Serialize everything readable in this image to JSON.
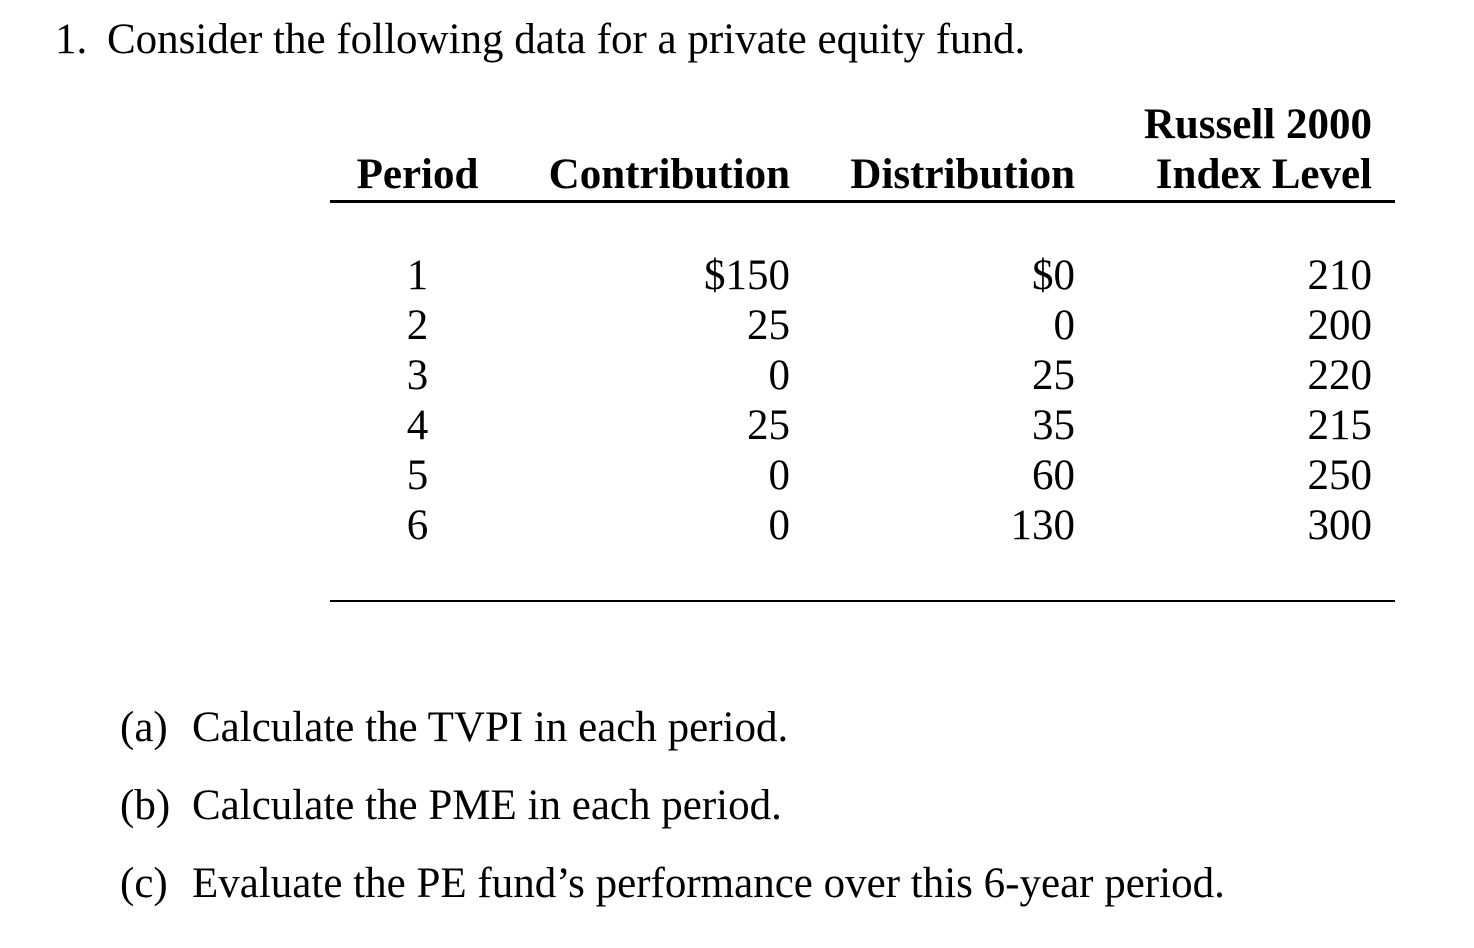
{
  "page": {
    "background_color": "#ffffff",
    "text_color": "#000000"
  },
  "problem": {
    "number": "1.",
    "statement": "Consider the following data for a private equity fund."
  },
  "table": {
    "header_top_col4": "Russell 2000",
    "headers": {
      "period": "Period",
      "contribution": "Contribution",
      "distribution": "Distribution",
      "index_level": "Index Level"
    },
    "rows": [
      {
        "period": "1",
        "contribution": "$150",
        "distribution": "$0",
        "index_level": "210"
      },
      {
        "period": "2",
        "contribution": "25",
        "distribution": "0",
        "index_level": "200"
      },
      {
        "period": "3",
        "contribution": "0",
        "distribution": "25",
        "index_level": "220"
      },
      {
        "period": "4",
        "contribution": "25",
        "distribution": "35",
        "index_level": "215"
      },
      {
        "period": "5",
        "contribution": "0",
        "distribution": "60",
        "index_level": "250"
      },
      {
        "period": "6",
        "contribution": "0",
        "distribution": "130",
        "index_level": "300"
      }
    ]
  },
  "questions": [
    {
      "label": "(a)",
      "text": "Calculate the TVPI in each period."
    },
    {
      "label": "(b)",
      "text": "Calculate the PME in each period."
    },
    {
      "label": "(c)",
      "text": "Evaluate the PE fund’s performance over this 6-year period."
    }
  ]
}
